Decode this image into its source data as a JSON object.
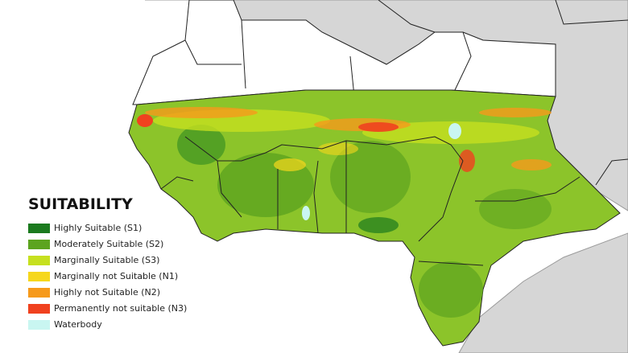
{
  "legend": {
    "title": "SUITABILITY",
    "items": [
      {
        "label": "Highly Suitable (S1)",
        "color": "#1b7a1e"
      },
      {
        "label": "Moderately Suitable (S2)",
        "color": "#5ca41f"
      },
      {
        "label": "Marginally Suitable (S3)",
        "color": "#c6e01f"
      },
      {
        "label": "Marginally not Suitable (N1)",
        "color": "#f6d71d"
      },
      {
        "label": "Highly not Suitable (N2)",
        "color": "#f69a1b"
      },
      {
        "label": "Permanently not suitable (N3)",
        "color": "#f0411f"
      },
      {
        "label": "Waterbody",
        "color": "#c9f6f1"
      }
    ]
  }
}
